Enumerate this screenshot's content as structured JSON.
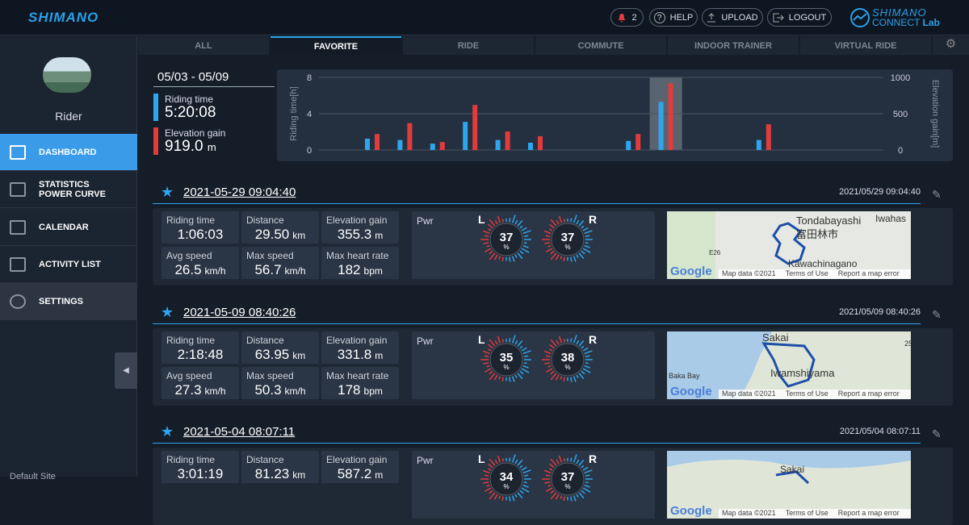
{
  "header": {
    "brand": "SHIMANO",
    "notification_count": "2",
    "help": "HELP",
    "upload": "UPLOAD",
    "logout": "LOGOUT",
    "logo_top": "SHIMANO",
    "logo_bottom": "CONNECT",
    "logo_suffix": "Lab"
  },
  "sidebar": {
    "user": "Rider",
    "nav": [
      {
        "label": "DASHBOARD"
      },
      {
        "label": "STATISTICS",
        "label2": "POWER CURVE"
      },
      {
        "label": "CALENDAR"
      },
      {
        "label": "ACTIVITY LIST"
      },
      {
        "label": "SETTINGS"
      }
    ],
    "footer": "Default Site"
  },
  "tabs": [
    "ALL",
    "FAVORITE",
    "RIDE",
    "COMMUTE",
    "INDOOR TRAINER",
    "VIRTUAL RIDE"
  ],
  "summary": {
    "range": "05/03 - 05/09",
    "riding_time_label": "Riding time",
    "riding_time": "5:20:08",
    "elevation_label": "Elevation gain",
    "elevation": "919.0",
    "elevation_unit": "m"
  },
  "weekly_chart": {
    "y_label": "Riding time[h]",
    "y2_label": "Elevation gain[m]",
    "ylim": [
      0,
      8
    ],
    "yticks": [
      0,
      4,
      8
    ],
    "y2lim": [
      0,
      1000
    ],
    "y2ticks": [
      0,
      500,
      1000
    ],
    "riding_time": [
      1.25,
      1.1,
      0.7,
      3.1,
      1.1,
      0.8,
      0,
      0,
      1.0,
      5.3,
      0,
      0,
      1.1
    ],
    "elevation_gain": [
      220,
      370,
      110,
      620,
      255,
      190,
      0,
      0,
      220,
      919,
      0,
      0,
      355
    ]
  },
  "power": {
    "label": "Pwr",
    "left": "L",
    "right": "R",
    "unit": "%"
  },
  "map_credits": {
    "google": "Google",
    "data": "Map data ©2021",
    "terms": "Terms of Use",
    "report": "Report a map error"
  },
  "activities": [
    {
      "title": "2021-05-29 09:04:40",
      "timestamp": "2021/05/29 09:04:40",
      "stats": [
        {
          "label": "Riding time",
          "value": "1:06:03"
        },
        {
          "label": "Distance",
          "value": "29.50",
          "unit": "km"
        },
        {
          "label": "Elevation gain",
          "value": "355.3",
          "unit": "m"
        },
        {
          "label": "Avg speed",
          "value": "26.5",
          "unit": "km/h"
        },
        {
          "label": "Max speed",
          "value": "56.7",
          "unit": "km/h"
        },
        {
          "label": "Max heart rate",
          "value": "182",
          "unit": "bpm"
        }
      ],
      "left": "37",
      "right": "37",
      "places": [
        "Tondabayashi",
        "富田林市",
        "Iwahas",
        "Kawachinagano",
        "E26"
      ]
    },
    {
      "title": "2021-05-09 08:40:26",
      "timestamp": "2021/05/09 08:40:26",
      "stats": [
        {
          "label": "Riding time",
          "value": "2:18:48"
        },
        {
          "label": "Distance",
          "value": "63.95",
          "unit": "km"
        },
        {
          "label": "Elevation gain",
          "value": "331.8",
          "unit": "m"
        },
        {
          "label": "Avg speed",
          "value": "27.3",
          "unit": "km/h"
        },
        {
          "label": "Max speed",
          "value": "50.3",
          "unit": "km/h"
        },
        {
          "label": "Max heart rate",
          "value": "178",
          "unit": "bpm"
        }
      ],
      "left": "35",
      "right": "38",
      "places": [
        "Sakai",
        "Iwamshiyama",
        "Baka Bay",
        "25"
      ]
    },
    {
      "title": "2021-05-04 08:07:11",
      "timestamp": "2021/05/04 08:07:11",
      "stats": [
        {
          "label": "Riding time",
          "value": "3:01:19"
        },
        {
          "label": "Distance",
          "value": "81.23",
          "unit": "km"
        },
        {
          "label": "Elevation gain",
          "value": "587.2",
          "unit": "m"
        }
      ],
      "left": "34",
      "right": "37",
      "places": [
        "Sakai"
      ]
    }
  ]
}
